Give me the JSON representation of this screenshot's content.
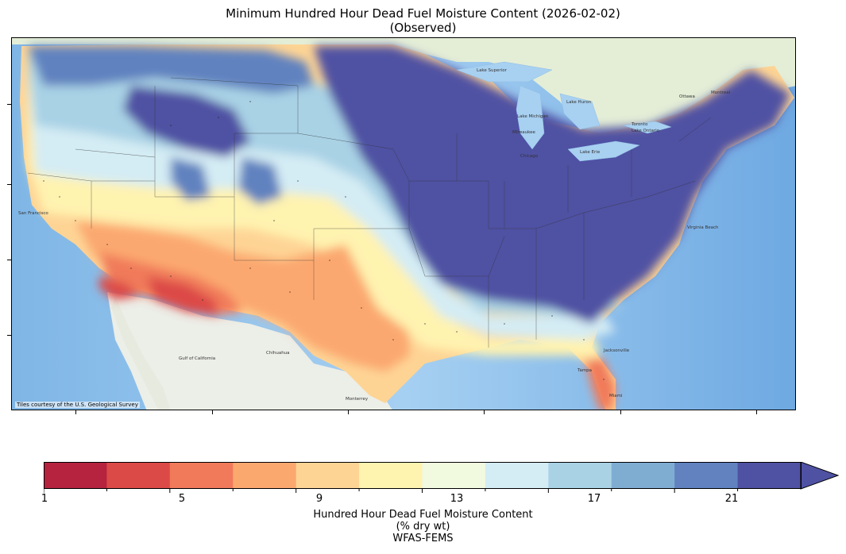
{
  "title": {
    "line1": "Minimum Hundred Hour Dead Fuel Moisture Content (2026-02-02)",
    "line2": "(Observed)"
  },
  "map": {
    "attribution": "Tiles courtesy of the U.S. Geological Survey",
    "place_labels": [
      "San Francisco",
      "Chihuahua",
      "Monterrey",
      "Milwaukee",
      "Chicago",
      "Ottawa",
      "Montreal",
      "Toronto",
      "Virginia Beach",
      "Jacksonville",
      "Tampa",
      "Miami",
      "Lake Superior",
      "Lake Michigan",
      "Lake Huron",
      "Lake Ontario",
      "Lake Erie",
      "Gulf of California"
    ]
  },
  "colorbar": {
    "ticks": [
      "1",
      "5",
      "9",
      "13",
      "17",
      "21"
    ],
    "bins": [
      1,
      3,
      5,
      7,
      9,
      11,
      13,
      15,
      17,
      19,
      21,
      23
    ],
    "extend": "max",
    "colors": [
      "#b5233f",
      "#dc4a47",
      "#f07a5a",
      "#fba86f",
      "#fed495",
      "#fff3b0",
      "#f1f9df",
      "#d4ecf4",
      "#a9d2e5",
      "#7fadd2",
      "#6182bf",
      "#4f51a3"
    ],
    "label_line1": "Hundred Hour Dead Fuel Moisture Content",
    "label_line2": "(% dry wt)",
    "label_line3": "WFAS-FEMS"
  },
  "colors": {
    "ocean": "#8ec3ee",
    "land_us_base": "#fed495",
    "mexico_land": "#eceee8",
    "canada_land": "#e4eed6",
    "lakes": "#a8d0f0"
  }
}
